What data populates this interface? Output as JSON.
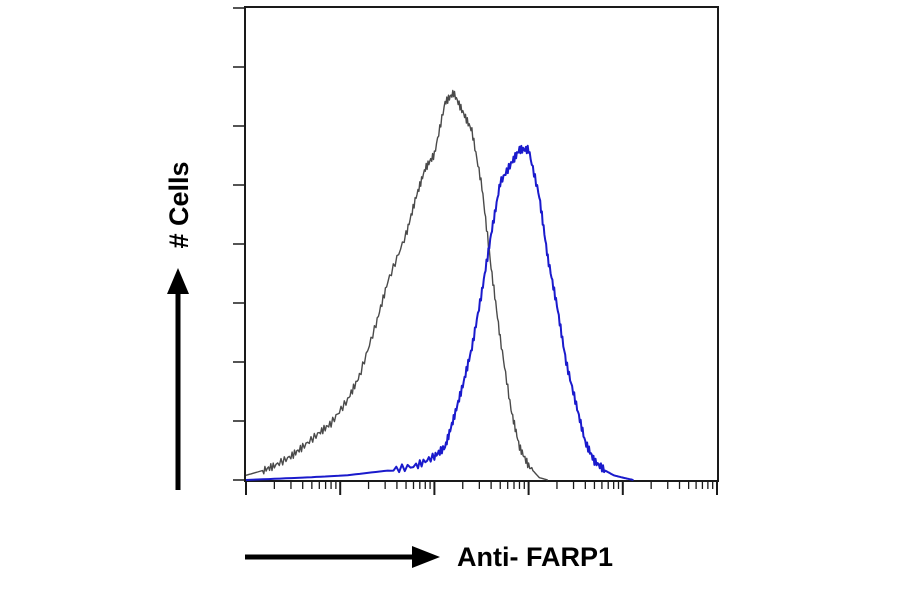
{
  "chart_data": {
    "type": "histogram-overlay",
    "title": "",
    "xlabel": "Anti- FARP1",
    "ylabel": "# Cells",
    "x_scale": "log",
    "xlim": [
      1,
      100000
    ],
    "ylim": [
      0,
      1
    ],
    "x_ticks_printed": false,
    "y_ticks_printed": false,
    "grid": false,
    "legend": "none",
    "series": [
      {
        "role": "control",
        "color": "#4a4a4a",
        "x": [
          1,
          1.5,
          2,
          3,
          4,
          6,
          8,
          12,
          16,
          24,
          32,
          50,
          64,
          80,
          100,
          130,
          160,
          200,
          250,
          320,
          400,
          500,
          650,
          800,
          1000,
          1300,
          1600
        ],
        "y": [
          0.01,
          0.02,
          0.03,
          0.05,
          0.07,
          0.1,
          0.12,
          0.17,
          0.22,
          0.33,
          0.42,
          0.52,
          0.6,
          0.66,
          0.69,
          0.8,
          0.82,
          0.78,
          0.74,
          0.62,
          0.45,
          0.3,
          0.15,
          0.07,
          0.03,
          0.005,
          0
        ]
      },
      {
        "role": "sample",
        "color": "#1a1acc",
        "x": [
          1,
          4,
          12,
          32,
          64,
          100,
          130,
          160,
          200,
          250,
          320,
          400,
          500,
          650,
          800,
          1000,
          1300,
          1600,
          2000,
          2500,
          3200,
          4000,
          5000,
          6500,
          8000,
          10000,
          13000
        ],
        "y": [
          0,
          0.005,
          0.01,
          0.02,
          0.03,
          0.05,
          0.07,
          0.13,
          0.2,
          0.28,
          0.4,
          0.52,
          0.63,
          0.67,
          0.7,
          0.7,
          0.6,
          0.47,
          0.37,
          0.25,
          0.16,
          0.08,
          0.04,
          0.02,
          0.01,
          0.005,
          0
        ]
      }
    ]
  }
}
